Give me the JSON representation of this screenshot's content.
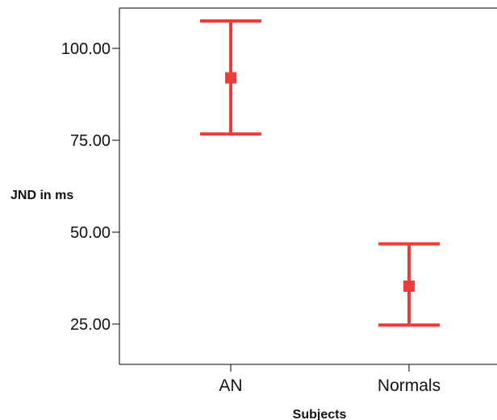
{
  "chart_data": {
    "type": "errorbar",
    "categories": [
      "AN",
      "Normals"
    ],
    "series": [
      {
        "values": [
          92.0,
          35.3
        ],
        "lower": [
          76.7,
          24.7
        ],
        "upper": [
          107.5,
          46.8
        ]
      }
    ],
    "xlabel": "Subjects",
    "ylabel": "JND in ms",
    "ylim": [
      14.0,
      111.0
    ],
    "yticks": [
      25,
      50,
      75,
      100
    ],
    "ytick_labels": [
      "25.00",
      "50.00",
      "75.00",
      "100.00"
    ],
    "grid": false,
    "color": "#ee3b3b"
  }
}
